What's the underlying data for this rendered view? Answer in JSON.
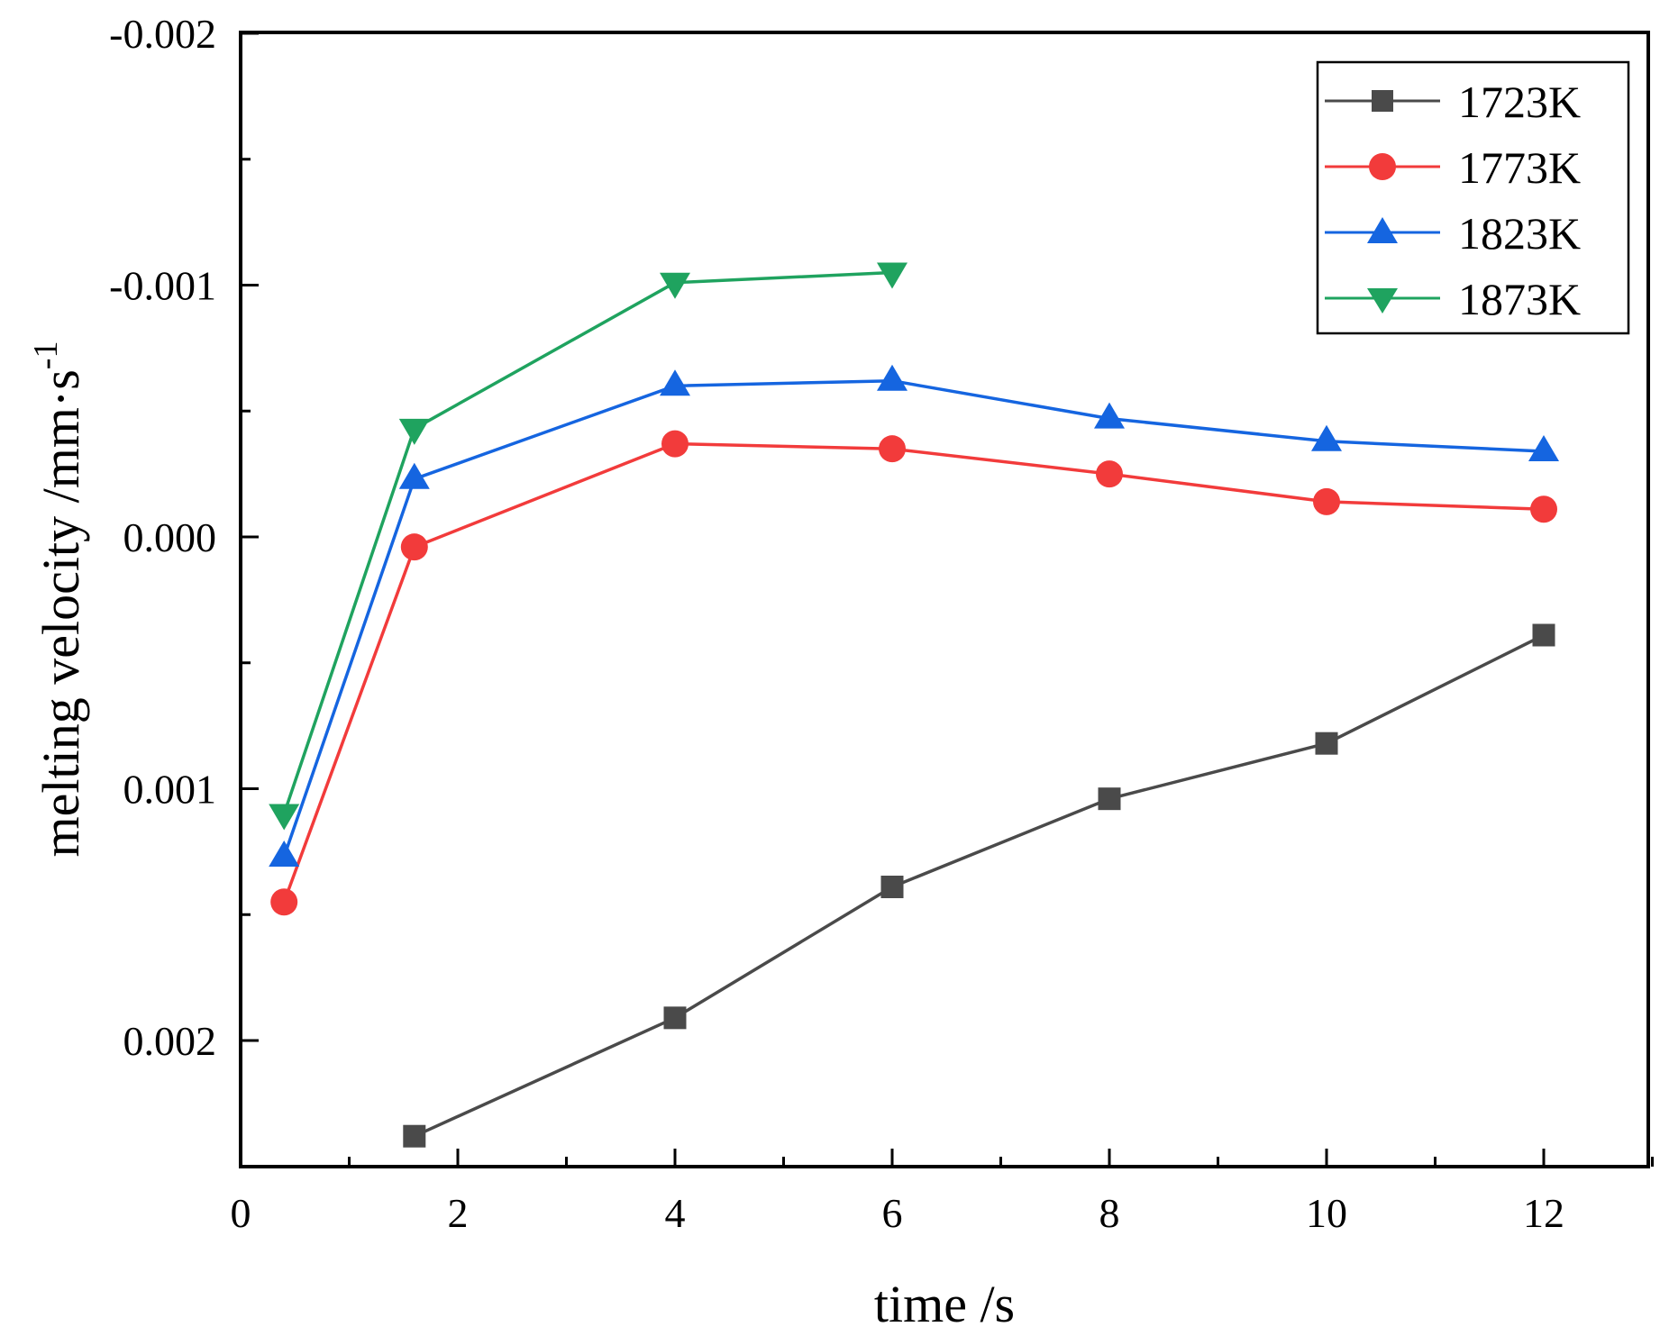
{
  "chart_data": {
    "type": "line",
    "title": "",
    "xlabel": "time /s",
    "ylabel": "melting velocity /mm·s",
    "ylabel_superscript": "-1",
    "xlim": [
      0,
      13
    ],
    "ylim": [
      -0.002,
      0.0025
    ],
    "y_axis_inverted": true,
    "x_ticks": [
      0,
      2,
      4,
      6,
      8,
      10,
      12
    ],
    "x_tick_labels": [
      "0",
      "2",
      "4",
      "6",
      "8",
      "10",
      "12"
    ],
    "y_ticks": [
      -0.002,
      -0.001,
      0.0,
      0.001,
      0.002
    ],
    "y_tick_labels": [
      "-0.002",
      "-0.001",
      "0.000",
      "0.001",
      "0.002"
    ],
    "grid": false,
    "legend_position": "top-right",
    "series": [
      {
        "name": "1723K",
        "color": "#4a4a4a",
        "marker": "square",
        "x": [
          1.6,
          4,
          6,
          8,
          10,
          12
        ],
        "y": [
          0.00238,
          0.00191,
          0.00139,
          0.00104,
          0.00082,
          0.00039
        ]
      },
      {
        "name": "1773K",
        "color": "#f23b3b",
        "marker": "circle",
        "x": [
          0.4,
          1.6,
          4,
          6,
          8,
          10,
          12
        ],
        "y": [
          0.00145,
          4e-05,
          -0.00037,
          -0.00035,
          -0.00025,
          -0.00014,
          -0.00011
        ]
      },
      {
        "name": "1823K",
        "color": "#1565e0",
        "marker": "triangle-up",
        "x": [
          0.4,
          1.6,
          4,
          6,
          8,
          10,
          12
        ],
        "y": [
          0.00127,
          -0.00023,
          -0.0006,
          -0.00062,
          -0.00047,
          -0.00038,
          -0.00034
        ]
      },
      {
        "name": "1873K",
        "color": "#1fa35f",
        "marker": "triangle-down",
        "x": [
          0.4,
          1.6,
          4,
          6
        ],
        "y": [
          0.0011,
          -0.00043,
          -0.00101,
          -0.00105
        ]
      }
    ]
  }
}
